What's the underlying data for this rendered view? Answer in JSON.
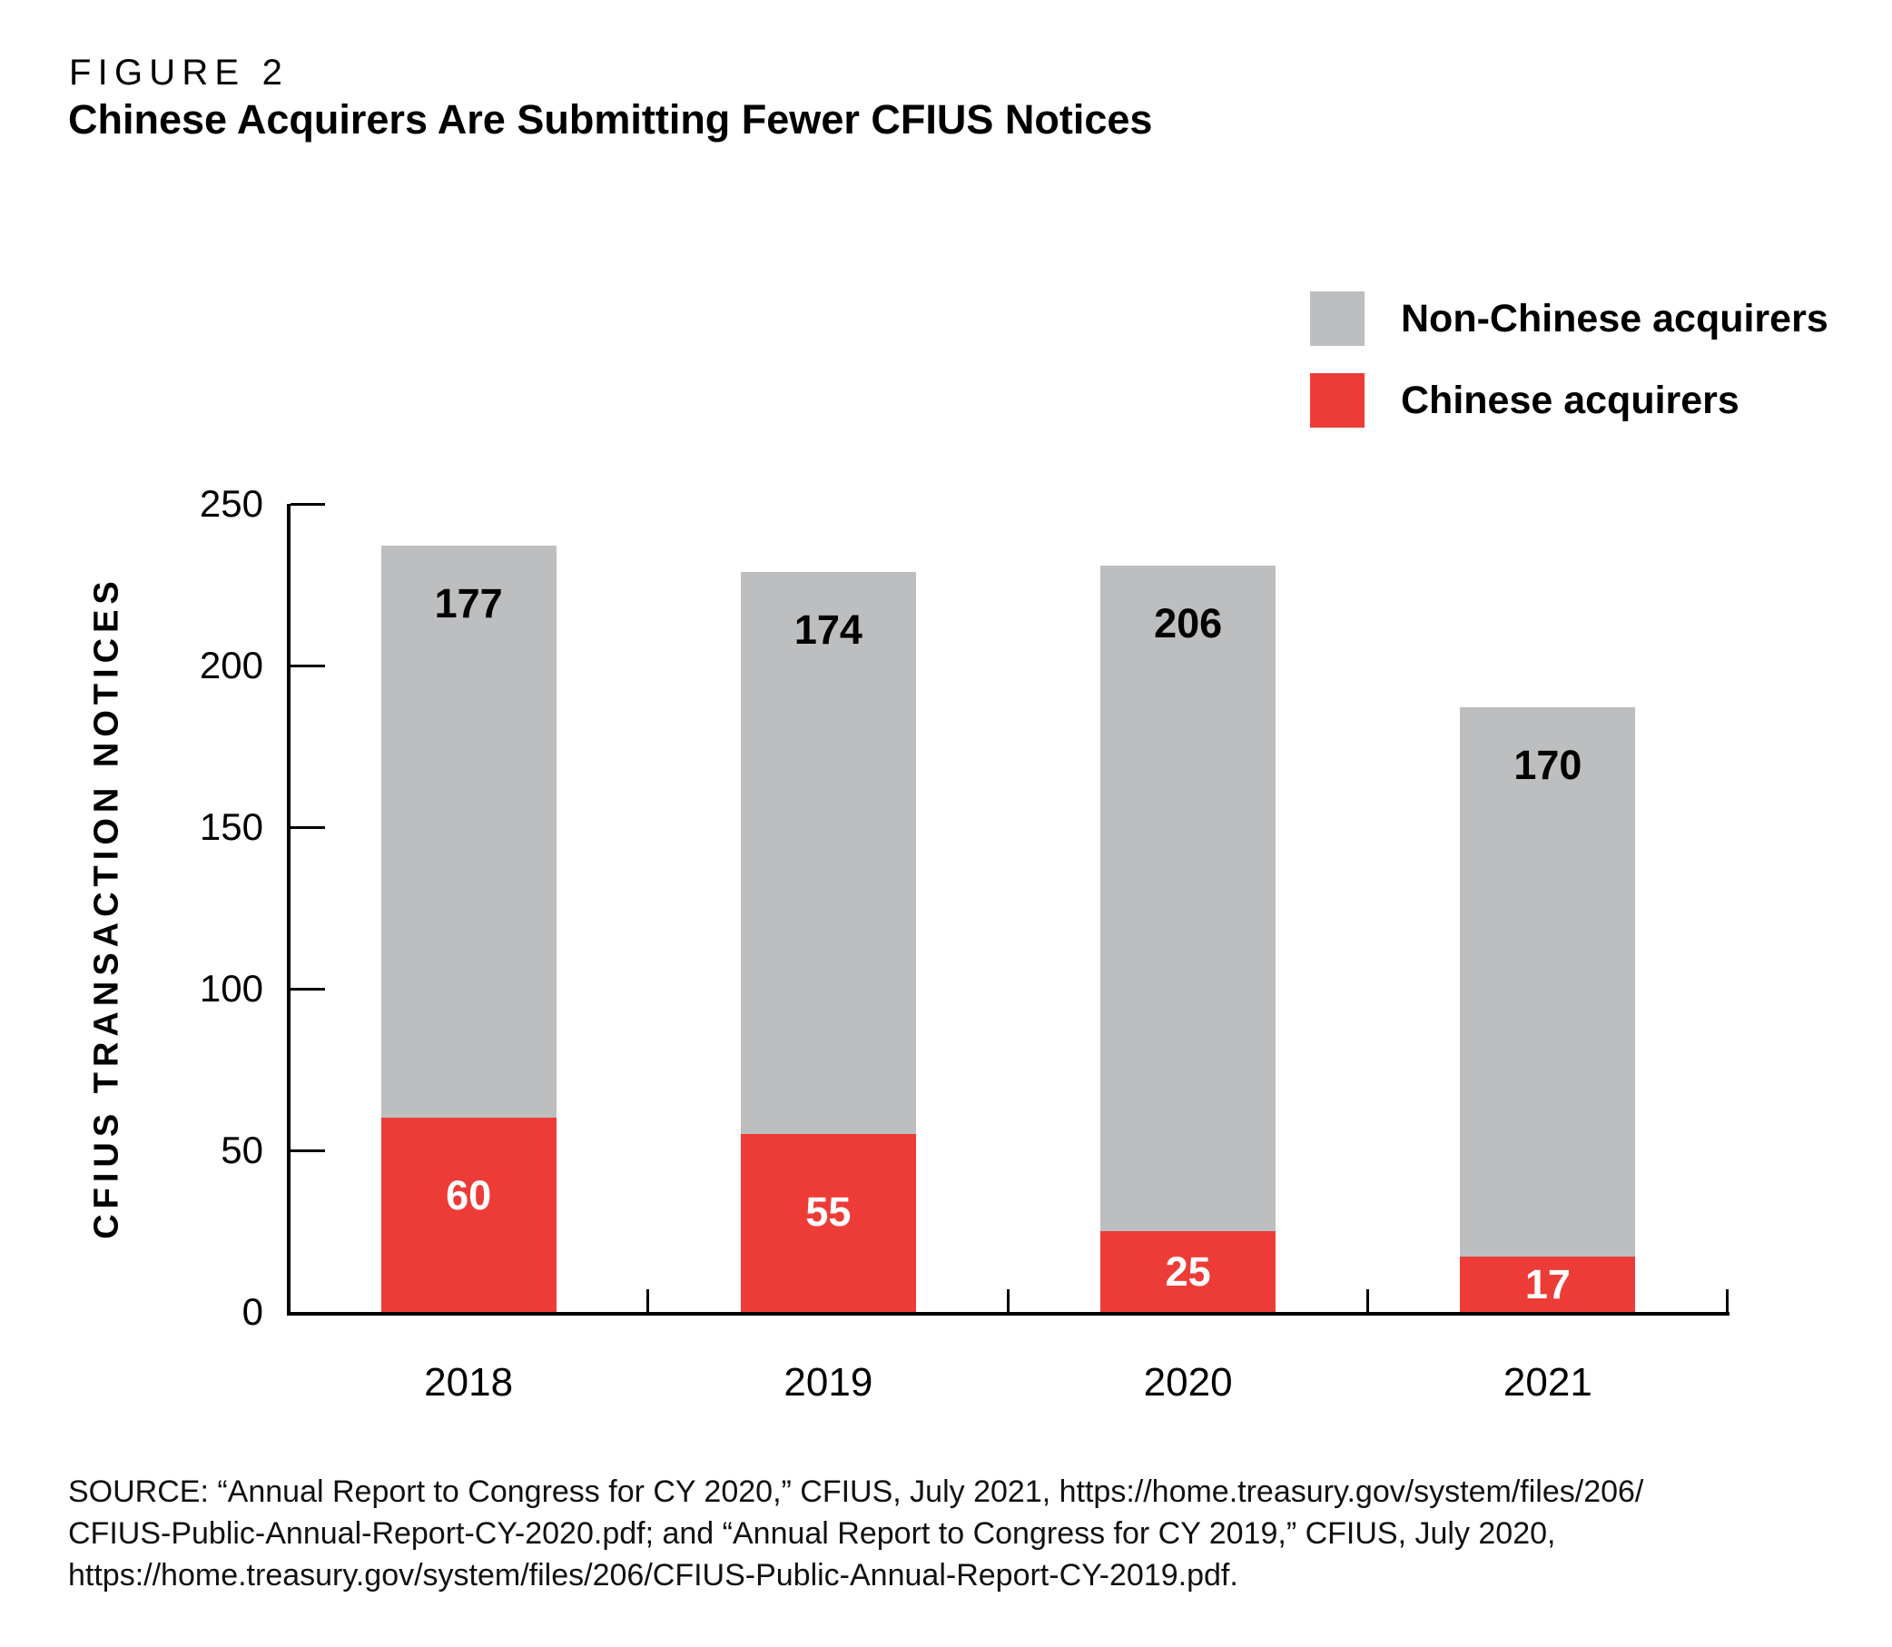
{
  "figure": {
    "label": "FIGURE 2",
    "title": "Chinese Acquirers Are Submitting Fewer CFIUS Notices"
  },
  "legend": [
    {
      "label": "Non-Chinese acquirers",
      "color": "#bcbec0"
    },
    {
      "label": "Chinese acquirers",
      "color": "#ed3c38"
    }
  ],
  "colors": {
    "non_chinese": "#bcbec0",
    "chinese": "#ed3c38",
    "axis": "#000000",
    "background": "#ffffff"
  },
  "chart_data": {
    "type": "bar",
    "stacked": true,
    "categories": [
      "2018",
      "2019",
      "2020",
      "2021"
    ],
    "series": [
      {
        "name": "Chinese acquirers",
        "color": "#ed3c38",
        "values": [
          60,
          55,
          25,
          17
        ],
        "label_color": "#ffffff"
      },
      {
        "name": "Non-Chinese acquirers",
        "color": "#bcbec0",
        "values": [
          177,
          174,
          206,
          170
        ],
        "label_color": "#000000"
      }
    ],
    "totals": [
      237,
      229,
      231,
      187
    ],
    "title": "Chinese Acquirers Are Submitting Fewer CFIUS Notices",
    "xlabel": "",
    "ylabel": "CFIUS TRANSACTION NOTICES",
    "yticks": [
      0,
      50,
      100,
      150,
      200,
      250
    ],
    "ylim": [
      0,
      250
    ],
    "grid": false,
    "legend_position": "top-right",
    "data_labels": true
  },
  "source": {
    "lines": [
      "SOURCE: “Annual Report to Congress for CY 2020,” CFIUS, July 2021, https://home.treasury.gov/system/files/206/",
      "CFIUS-Public-Annual-Report-CY-2020.pdf; and “Annual Report to Congress for CY 2019,” CFIUS, July 2020,",
      "https://home.treasury.gov/system/files/206/CFIUS-Public-Annual-Report-CY-2019.pdf."
    ]
  }
}
